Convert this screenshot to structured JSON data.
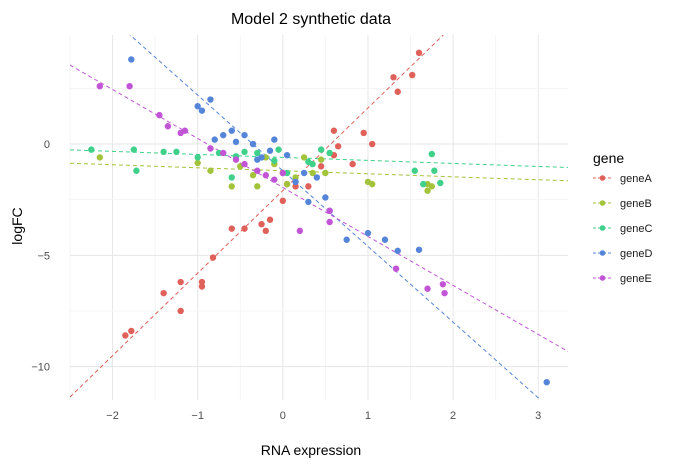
{
  "chart_data": {
    "type": "scatter",
    "title": "Model 2 synthetic data",
    "xlabel": "RNA expression",
    "ylabel": "logFC",
    "xlim": [
      -2.5,
      3.35
    ],
    "ylim": [
      -11.5,
      4.9
    ],
    "x_ticks": [
      -2,
      -1,
      0,
      1,
      2,
      3
    ],
    "y_ticks": [
      0,
      -5,
      -10
    ],
    "grid": true,
    "legend": {
      "title": "gene",
      "position": "right"
    },
    "series": [
      {
        "name": "geneA",
        "color": "#E0605A",
        "fit_line": {
          "slope": 3.71,
          "intercept": -2.09
        },
        "points": [
          [
            -1.85,
            -8.6
          ],
          [
            -1.78,
            -8.4
          ],
          [
            -1.4,
            -6.7
          ],
          [
            -1.2,
            -7.5
          ],
          [
            -1.2,
            -6.2
          ],
          [
            -0.95,
            -6.4
          ],
          [
            -0.95,
            -6.2
          ],
          [
            -0.82,
            -5.1
          ],
          [
            -0.6,
            -3.8
          ],
          [
            -0.45,
            -3.8
          ],
          [
            -0.25,
            -3.6
          ],
          [
            -0.2,
            -3.9
          ],
          [
            -0.15,
            -3.4
          ],
          [
            0.0,
            -2.55
          ],
          [
            0.05,
            -1.8
          ],
          [
            0.15,
            -1.9
          ],
          [
            0.3,
            -1.9
          ],
          [
            0.45,
            -1.0
          ],
          [
            0.6,
            -0.5
          ],
          [
            0.6,
            0.6
          ],
          [
            0.65,
            -0.1
          ],
          [
            0.82,
            -0.9
          ],
          [
            0.95,
            0.5
          ],
          [
            1.05,
            0.0
          ],
          [
            1.3,
            3.0
          ],
          [
            1.35,
            2.35
          ],
          [
            1.52,
            3.1
          ],
          [
            1.6,
            4.1
          ]
        ]
      },
      {
        "name": "geneB",
        "color": "#A3C33B",
        "fit_line": {
          "slope": -0.135,
          "intercept": -1.2
        },
        "points": [
          [
            -2.15,
            -0.6
          ],
          [
            -1.0,
            -0.85
          ],
          [
            -0.85,
            -1.2
          ],
          [
            -0.6,
            -1.9
          ],
          [
            -0.5,
            -1.0
          ],
          [
            -0.35,
            -1.4
          ],
          [
            -0.3,
            -1.9
          ],
          [
            -0.2,
            -0.6
          ],
          [
            -0.1,
            -0.9
          ],
          [
            0.0,
            -1.3
          ],
          [
            0.05,
            -1.8
          ],
          [
            0.15,
            -1.5
          ],
          [
            0.25,
            -0.6
          ],
          [
            0.35,
            -1.3
          ],
          [
            0.45,
            -0.7
          ],
          [
            0.5,
            -1.3
          ],
          [
            1.0,
            -1.7
          ],
          [
            1.05,
            -1.8
          ],
          [
            1.7,
            -1.8
          ],
          [
            1.7,
            -2.1
          ],
          [
            1.75,
            -1.9
          ]
        ]
      },
      {
        "name": "geneC",
        "color": "#3FD08A",
        "fit_line": {
          "slope": -0.135,
          "intercept": -0.6
        },
        "points": [
          [
            -2.25,
            -0.25
          ],
          [
            -1.75,
            -0.25
          ],
          [
            -1.72,
            -1.2
          ],
          [
            -1.4,
            -0.35
          ],
          [
            -1.25,
            -0.35
          ],
          [
            -1.0,
            -0.6
          ],
          [
            -0.75,
            -0.4
          ],
          [
            -0.6,
            -1.5
          ],
          [
            -0.55,
            -0.55
          ],
          [
            -0.45,
            -0.35
          ],
          [
            -0.3,
            -0.4
          ],
          [
            -0.1,
            -0.75
          ],
          [
            -0.05,
            -0.25
          ],
          [
            0.05,
            -1.3
          ],
          [
            0.3,
            -0.8
          ],
          [
            0.35,
            -0.9
          ],
          [
            0.45,
            -0.25
          ],
          [
            0.55,
            -0.4
          ],
          [
            1.55,
            -1.2
          ],
          [
            1.65,
            -1.8
          ],
          [
            1.75,
            -0.45
          ],
          [
            1.78,
            -1.2
          ],
          [
            1.85,
            -1.75
          ]
        ]
      },
      {
        "name": "geneD",
        "color": "#5585D8",
        "fit_line": {
          "slope": -3.4,
          "intercept": -1.2
        },
        "points": [
          [
            -1.78,
            3.8
          ],
          [
            -1.0,
            1.7
          ],
          [
            -0.95,
            1.5
          ],
          [
            -0.85,
            2.0
          ],
          [
            -0.8,
            0.2
          ],
          [
            -0.7,
            0.4
          ],
          [
            -0.6,
            0.6
          ],
          [
            -0.55,
            0.1
          ],
          [
            -0.45,
            0.4
          ],
          [
            -0.35,
            0.0
          ],
          [
            -0.3,
            -0.7
          ],
          [
            -0.25,
            -0.6
          ],
          [
            -0.15,
            -0.3
          ],
          [
            -0.1,
            0.2
          ],
          [
            0.05,
            -0.5
          ],
          [
            0.15,
            -1.7
          ],
          [
            0.25,
            -1.3
          ],
          [
            0.3,
            -2.6
          ],
          [
            0.4,
            -1.5
          ],
          [
            0.5,
            -2.4
          ],
          [
            0.55,
            -3.0
          ],
          [
            0.75,
            -4.3
          ],
          [
            1.0,
            -4.0
          ],
          [
            1.2,
            -4.3
          ],
          [
            1.35,
            -4.8
          ],
          [
            1.6,
            -4.75
          ],
          [
            3.1,
            -10.7
          ]
        ]
      },
      {
        "name": "geneE",
        "color": "#C155D6",
        "fit_line": {
          "slope": -2.2,
          "intercept": -1.95
        },
        "points": [
          [
            -2.15,
            2.6
          ],
          [
            -1.8,
            2.6
          ],
          [
            -1.45,
            1.3
          ],
          [
            -1.35,
            0.8
          ],
          [
            -1.2,
            0.5
          ],
          [
            -1.15,
            0.6
          ],
          [
            -0.85,
            -0.2
          ],
          [
            -0.7,
            -0.4
          ],
          [
            -0.55,
            -0.7
          ],
          [
            -0.45,
            -0.9
          ],
          [
            -0.3,
            -1.2
          ],
          [
            -0.2,
            -1.4
          ],
          [
            -0.1,
            -1.6
          ],
          [
            0.0,
            -1.3
          ],
          [
            0.2,
            -3.9
          ],
          [
            0.55,
            -3.0
          ],
          [
            0.55,
            -3.5
          ],
          [
            1.33,
            -5.6
          ],
          [
            1.7,
            -6.5
          ],
          [
            1.88,
            -6.3
          ],
          [
            1.9,
            -6.7
          ]
        ]
      }
    ]
  }
}
